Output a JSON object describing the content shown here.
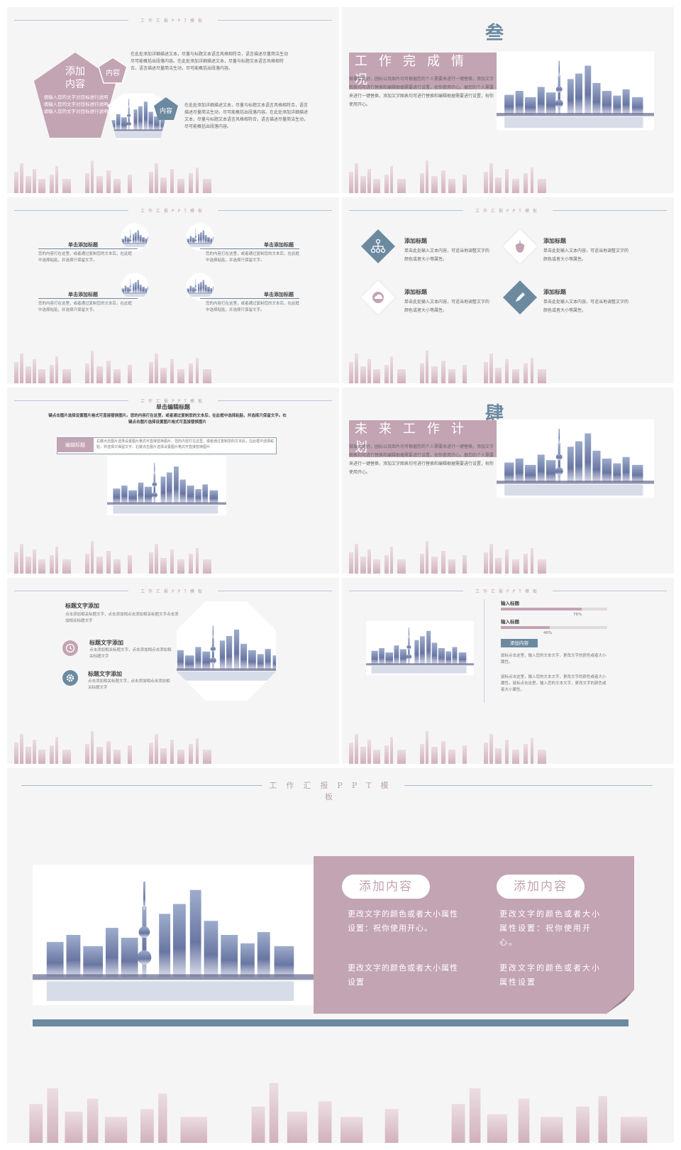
{
  "header_label": "工作汇报PPT模板",
  "s1": {
    "pentagon_title": "添加\n内容",
    "pentagon_text": "请输入您的文字对目标进行说明请输入您的文字对目标进行说明请输入您的文字对目标进行说明",
    "tag_top": "内容",
    "tag_mid": "内容",
    "para1": "在此处添加详细描述文本，尽量与标题文本语言风格相符合，语言描述尽量简洁生动尽可能概括出段落内容。在此处添加详细描述文本，尽量与标题文本语言风格相符合，语言描述尽量简洁生动，尽可能概括出段落内容。",
    "para2": "在此处添加详细描述文本，尽量与标题文本语言风格相符合，语言描述尽量简洁生动，尽可能概括出段落内容。在此处添加详细描述文本，尽量与标题文本语言风格相符合，语言描述尽量简洁生动，尽可能概括出段落内容。"
  },
  "s2": {
    "numeral": "叁",
    "title": "工作完成情况",
    "body": "做事会更好，园标以及图片均可根据您的个人需要来进行一键替换，添加文字图表均可进行替换和编辑根据需要进行设置，祝你使用开心。据您的个人需要来进行一键替换，添加文字图表均可进行替换和编辑根据需要进行设置，祝你使用开心。"
  },
  "s3": {
    "items": [
      {
        "title": "单击添加标题",
        "text": "您的内容打在这里，或者通过复制您的文本后，在此框中选择粘贴，并选择只保留文字。"
      },
      {
        "title": "单击添加标题",
        "text": "您的内容打在这里，或者通过复制您的文本后，在此框中选择粘贴，并选择只保留文字。"
      },
      {
        "title": "单击添加标题",
        "text": "您的内容打在这里，或者通过复制您的文本后，在此框中选择粘贴，并选择只保留文字。"
      },
      {
        "title": "单击添加标题",
        "text": "您的内容打在这里，或者通过复制您的文本后，在此框中选择粘贴，并选择只保留文字。"
      }
    ]
  },
  "s4": {
    "items": [
      {
        "title": "添加标题",
        "text": "单击此处输入文本内容，可适当地调整文字的颜色或者大小等属性。",
        "icon": "hierarchy-icon"
      },
      {
        "title": "添加标题",
        "text": "单击此处输入文本内容，可适当地调整文字的颜色或者大小等属性。",
        "icon": "acorn-icon"
      },
      {
        "title": "添加标题",
        "text": "单击此处输入文本内容，可适当地调整文字的颜色或者大小等属性。",
        "icon": "cloud-icon"
      },
      {
        "title": "添加标题",
        "text": "单击此处输入文本内容，可适当地调整文字的颜色或者大小等属性。",
        "icon": "pencil-icon"
      }
    ]
  },
  "s5": {
    "title": "单击编辑标题",
    "subtitle": "键点击图片选择设置图片格式可直接替换图片。您的内容打在这里，或者通过复制您的文本后，在此框中选择粘贴，并选择只保留文字。右键点击图片选择设置图片格式可直接替换图片",
    "tag": "编辑标题",
    "tag_text": "右键点击图片选择设置图片格式可直接替换图片。您的内容打在这里，或者通过复制您的文本后，在此框中选择粘贴，并选择只保留文字。右键点击图片选择设置图片格式可直接替换图片"
  },
  "s6": {
    "numeral": "肆",
    "title": "未来工作计划",
    "body": "做事会更好，园标以及图片均可根据您的个人需要来进行一键替换，添加文字图表均可进行替换和编辑根据需要进行设置，祝你使用开心。据您的个人需要来进行一键替换，添加文字图表均可进行替换和编辑根据需要进行设置，祝你使用开心。"
  },
  "s7": {
    "title": "标题文字添加",
    "text": "点击添加相关标题文字，点击添加相点击添加相关标题文字点击添加相关标题文字",
    "items": [
      {
        "title": "标题文字添加",
        "text": "点击添加相关标题文字，点击添加相点击添加相关标题文字",
        "icon": "clock-icon"
      },
      {
        "title": "标题文字添加",
        "text": "点击添加相关标题文字，点击添加相点击添加相关标题文字",
        "icon": "gear-icon"
      }
    ]
  },
  "s8": {
    "bars": [
      {
        "label": "输入标题",
        "value": 76,
        "value_text": "76%"
      },
      {
        "label": "输入标题",
        "value": 46,
        "value_text": "46%"
      }
    ],
    "tag": "添加内容",
    "text1": "鼠标点击这里，输入您的文本文字，更改文字的颜色或者大小属性。",
    "text2": "鼠标点击这里，输入您的文本文字，更改文字的颜色或者大小属性，鼠标点击这里，输入您的文本文字，更改文字的颜色或者大小属性。"
  },
  "s9": {
    "header": "工作汇报PPT模板",
    "cards": [
      {
        "pill": "添加内容",
        "text1": "更改文字的颜色或者大小属性设置：祝你使用开心。",
        "text2": "更改文字的颜色或者大小属性设置"
      },
      {
        "pill": "添加内容",
        "text1": "更改文字的颜色或者大小属性设置：祝你使用开心。",
        "text2": "更改文字的颜色或者大小属性设置"
      }
    ]
  },
  "colors": {
    "pink": "#c3a4b2",
    "steel": "#6b8aa0",
    "bg": "#f6f5f6"
  }
}
